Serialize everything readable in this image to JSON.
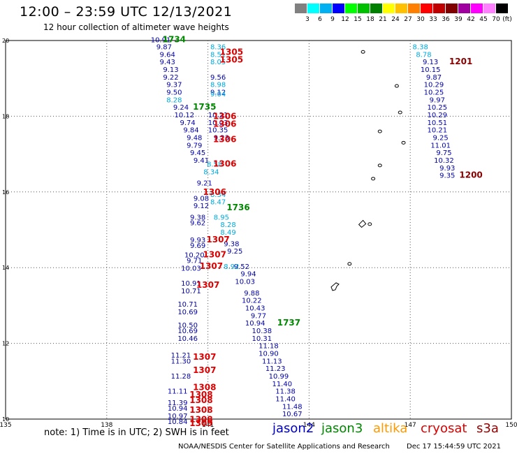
{
  "header": {
    "title": "12:00 – 23:59 UTC 12/13/2021",
    "subtitle": "12 hour collection of altimeter wave heights"
  },
  "scale": {
    "unit": "(ft)",
    "colors": [
      "#808080",
      "#00ffff",
      "#00b0f0",
      "#0000ff",
      "#00ff00",
      "#00c000",
      "#008000",
      "#ffff00",
      "#ffc000",
      "#ff8000",
      "#ff0000",
      "#c00000",
      "#800000",
      "#a000a0",
      "#ff00ff",
      "#ff80ff",
      "#000000"
    ],
    "labels": [
      "3",
      "6",
      "9",
      "12",
      "15",
      "18",
      "21",
      "24",
      "27",
      "30",
      "33",
      "36",
      "39",
      "42",
      "45",
      "70"
    ]
  },
  "map": {
    "lon_range": [
      135,
      150
    ],
    "lat_range": [
      10,
      20
    ],
    "lon_ticks": [
      "135",
      "138",
      "141",
      "144",
      "147",
      "150"
    ],
    "lat_ticks": [
      "20",
      "18",
      "16",
      "14",
      "12",
      "10"
    ],
    "grid": "dotted"
  },
  "chart_data": {
    "type": "scatter",
    "series": [
      {
        "name": "jason2",
        "color": "#0000aa",
        "points": [
          {
            "lon": 139.6,
            "lat": 19.95,
            "v": "10.91"
          },
          {
            "lon": 139.7,
            "lat": 19.77,
            "v": "9.87"
          },
          {
            "lon": 139.8,
            "lat": 19.57,
            "v": "9.64"
          },
          {
            "lon": 139.8,
            "lat": 19.37,
            "v": "9.43"
          },
          {
            "lon": 139.9,
            "lat": 19.17,
            "v": "9.13"
          },
          {
            "lon": 139.9,
            "lat": 18.97,
            "v": "9.22"
          },
          {
            "lon": 140.0,
            "lat": 18.77,
            "v": "9.37"
          },
          {
            "lon": 140.0,
            "lat": 18.57,
            "v": "9.50"
          },
          {
            "lon": 140.2,
            "lat": 18.17,
            "v": "9.24"
          },
          {
            "lon": 140.3,
            "lat": 17.97,
            "v": "10.12"
          },
          {
            "lon": 140.4,
            "lat": 17.77,
            "v": "9.74"
          },
          {
            "lon": 140.5,
            "lat": 17.57,
            "v": "9.84"
          },
          {
            "lon": 140.6,
            "lat": 17.37,
            "v": "9.48"
          },
          {
            "lon": 140.6,
            "lat": 17.17,
            "v": "9.79"
          },
          {
            "lon": 140.7,
            "lat": 16.97,
            "v": "9.45"
          },
          {
            "lon": 140.8,
            "lat": 16.77,
            "v": "9.41"
          },
          {
            "lon": 140.9,
            "lat": 16.17,
            "v": "9.21"
          },
          {
            "lon": 140.8,
            "lat": 15.77,
            "v": "9.08"
          },
          {
            "lon": 140.8,
            "lat": 15.57,
            "v": "9.12"
          },
          {
            "lon": 140.7,
            "lat": 15.27,
            "v": "9.38"
          },
          {
            "lon": 140.7,
            "lat": 15.12,
            "v": "9.62"
          },
          {
            "lon": 140.7,
            "lat": 14.67,
            "v": "9.93"
          },
          {
            "lon": 140.7,
            "lat": 14.52,
            "v": "9.69"
          },
          {
            "lon": 140.6,
            "lat": 14.27,
            "v": "10.20"
          },
          {
            "lon": 140.6,
            "lat": 14.12,
            "v": "9.71"
          },
          {
            "lon": 140.5,
            "lat": 13.92,
            "v": "10.03"
          },
          {
            "lon": 140.5,
            "lat": 13.52,
            "v": "10.91"
          },
          {
            "lon": 140.5,
            "lat": 13.32,
            "v": "10.71"
          },
          {
            "lon": 140.4,
            "lat": 12.97,
            "v": "10.71"
          },
          {
            "lon": 140.4,
            "lat": 12.77,
            "v": "10.69"
          },
          {
            "lon": 140.4,
            "lat": 12.42,
            "v": "10.50"
          },
          {
            "lon": 140.4,
            "lat": 12.27,
            "v": "10.69"
          },
          {
            "lon": 140.4,
            "lat": 12.07,
            "v": "10.46"
          },
          {
            "lon": 140.2,
            "lat": 11.62,
            "v": "11.21"
          },
          {
            "lon": 140.2,
            "lat": 11.47,
            "v": "11.30"
          },
          {
            "lon": 140.2,
            "lat": 11.07,
            "v": "11.28"
          },
          {
            "lon": 140.1,
            "lat": 10.67,
            "v": "11.11"
          },
          {
            "lon": 140.1,
            "lat": 10.37,
            "v": "11.39"
          },
          {
            "lon": 140.1,
            "lat": 10.22,
            "v": "10.94"
          },
          {
            "lon": 140.1,
            "lat": 10.02,
            "v": "10.97"
          },
          {
            "lon": 140.1,
            "lat": 9.87,
            "v": "10.84"
          },
          {
            "lon": 141.3,
            "lat": 18.97,
            "v": "9.56"
          },
          {
            "lon": 141.3,
            "lat": 18.57,
            "v": "9.12"
          },
          {
            "lon": 141.3,
            "lat": 17.97,
            "v": "10.21"
          },
          {
            "lon": 141.3,
            "lat": 17.77,
            "v": "10.03"
          },
          {
            "lon": 141.3,
            "lat": 17.57,
            "v": "10.35"
          },
          {
            "lon": 141.4,
            "lat": 17.37,
            "v": "9.23"
          },
          {
            "lon": 141.7,
            "lat": 14.57,
            "v": "9.38"
          },
          {
            "lon": 141.8,
            "lat": 14.37,
            "v": "9.25"
          },
          {
            "lon": 142.0,
            "lat": 13.97,
            "v": "9.52"
          },
          {
            "lon": 142.2,
            "lat": 13.77,
            "v": "9.94"
          },
          {
            "lon": 142.1,
            "lat": 13.57,
            "v": "10.03"
          },
          {
            "lon": 142.3,
            "lat": 13.27,
            "v": "9.88"
          },
          {
            "lon": 142.3,
            "lat": 13.07,
            "v": "10.22"
          },
          {
            "lon": 142.4,
            "lat": 12.87,
            "v": "10.43"
          },
          {
            "lon": 142.5,
            "lat": 12.67,
            "v": "9.77"
          },
          {
            "lon": 142.4,
            "lat": 12.47,
            "v": "10.94"
          },
          {
            "lon": 142.6,
            "lat": 12.27,
            "v": "10.38"
          },
          {
            "lon": 142.6,
            "lat": 12.07,
            "v": "10.31"
          },
          {
            "lon": 142.8,
            "lat": 11.87,
            "v": "11.18"
          },
          {
            "lon": 142.8,
            "lat": 11.67,
            "v": "10.90"
          },
          {
            "lon": 142.9,
            "lat": 11.47,
            "v": "11.13"
          },
          {
            "lon": 143.0,
            "lat": 11.27,
            "v": "11.23"
          },
          {
            "lon": 143.1,
            "lat": 11.07,
            "v": "10.99"
          },
          {
            "lon": 143.2,
            "lat": 10.87,
            "v": "11.40"
          },
          {
            "lon": 143.3,
            "lat": 10.67,
            "v": "11.38"
          },
          {
            "lon": 143.3,
            "lat": 10.47,
            "v": "11.40"
          },
          {
            "lon": 143.5,
            "lat": 10.27,
            "v": "11.48"
          },
          {
            "lon": 143.5,
            "lat": 10.07,
            "v": "10.67"
          },
          {
            "lon": 147.6,
            "lat": 19.37,
            "v": "9.13"
          },
          {
            "lon": 147.6,
            "lat": 19.17,
            "v": "10.15"
          },
          {
            "lon": 147.7,
            "lat": 18.97,
            "v": "9.87"
          },
          {
            "lon": 147.7,
            "lat": 18.77,
            "v": "10.29"
          },
          {
            "lon": 147.7,
            "lat": 18.57,
            "v": "10.25"
          },
          {
            "lon": 147.8,
            "lat": 18.37,
            "v": "9.97"
          },
          {
            "lon": 147.8,
            "lat": 18.17,
            "v": "10.25"
          },
          {
            "lon": 147.8,
            "lat": 17.97,
            "v": "10.29"
          },
          {
            "lon": 147.8,
            "lat": 17.77,
            "v": "10.51"
          },
          {
            "lon": 147.8,
            "lat": 17.57,
            "v": "10.21"
          },
          {
            "lon": 147.9,
            "lat": 17.37,
            "v": "9.25"
          },
          {
            "lon": 147.9,
            "lat": 17.17,
            "v": "11.01"
          },
          {
            "lon": 148.0,
            "lat": 16.97,
            "v": "9.75"
          },
          {
            "lon": 148.0,
            "lat": 16.77,
            "v": "10.32"
          },
          {
            "lon": 148.1,
            "lat": 16.57,
            "v": "9.93"
          },
          {
            "lon": 148.1,
            "lat": 16.37,
            "v": "9.35"
          }
        ]
      },
      {
        "name": "jason3",
        "color": "#00aadd",
        "points": [
          {
            "lon": 141.3,
            "lat": 19.77,
            "v": "8.36"
          },
          {
            "lon": 141.3,
            "lat": 19.57,
            "v": "8.51"
          },
          {
            "lon": 141.3,
            "lat": 19.37,
            "v": "8.05"
          },
          {
            "lon": 141.3,
            "lat": 18.77,
            "v": "8.98"
          },
          {
            "lon": 140.0,
            "lat": 18.37,
            "v": "8.28"
          },
          {
            "lon": 141.3,
            "lat": 18.52,
            "v": "9.04"
          },
          {
            "lon": 141.2,
            "lat": 16.67,
            "v": "8.58"
          },
          {
            "lon": 141.1,
            "lat": 16.47,
            "v": "8.34"
          },
          {
            "lon": 141.3,
            "lat": 15.87,
            "v": "8.34"
          },
          {
            "lon": 141.3,
            "lat": 15.67,
            "v": "8.47"
          },
          {
            "lon": 141.4,
            "lat": 15.27,
            "v": "8.95"
          },
          {
            "lon": 141.6,
            "lat": 15.07,
            "v": "8.28"
          },
          {
            "lon": 141.6,
            "lat": 14.87,
            "v": "8.49"
          },
          {
            "lon": 141.7,
            "lat": 13.97,
            "v": "8.92"
          },
          {
            "lon": 147.3,
            "lat": 19.77,
            "v": "8.38"
          },
          {
            "lon": 147.4,
            "lat": 19.57,
            "v": "8.78"
          }
        ]
      },
      {
        "name": "cryosat",
        "color": "#dd0000",
        "points": [
          {
            "lon": 141.7,
            "lat": 19.62,
            "v": "1305"
          },
          {
            "lon": 141.7,
            "lat": 19.42,
            "v": "1305"
          },
          {
            "lon": 141.5,
            "lat": 17.92,
            "v": "1306"
          },
          {
            "lon": 141.5,
            "lat": 17.72,
            "v": "1306"
          },
          {
            "lon": 141.5,
            "lat": 17.32,
            "v": "1306"
          },
          {
            "lon": 141.5,
            "lat": 16.67,
            "v": "1306"
          },
          {
            "lon": 141.2,
            "lat": 15.92,
            "v": "1306"
          },
          {
            "lon": 141.3,
            "lat": 14.67,
            "v": "1307"
          },
          {
            "lon": 141.2,
            "lat": 14.27,
            "v": "1307"
          },
          {
            "lon": 141.1,
            "lat": 13.97,
            "v": "1307"
          },
          {
            "lon": 141.0,
            "lat": 13.47,
            "v": "1307"
          },
          {
            "lon": 140.9,
            "lat": 11.57,
            "v": "1307"
          },
          {
            "lon": 140.9,
            "lat": 11.22,
            "v": "1307"
          },
          {
            "lon": 140.9,
            "lat": 10.77,
            "v": "1308"
          },
          {
            "lon": 140.8,
            "lat": 10.57,
            "v": "1308"
          },
          {
            "lon": 140.8,
            "lat": 10.42,
            "v": "1308"
          },
          {
            "lon": 140.8,
            "lat": 10.17,
            "v": "1308"
          },
          {
            "lon": 140.8,
            "lat": 9.92,
            "v": "1308"
          },
          {
            "lon": 140.8,
            "lat": 9.82,
            "v": "1309"
          }
        ]
      },
      {
        "name": "s3a",
        "color": "#880000",
        "points": [
          {
            "lon": 148.5,
            "lat": 19.37,
            "v": "1201"
          },
          {
            "lon": 148.8,
            "lat": 16.37,
            "v": "1200"
          }
        ]
      },
      {
        "name": "jason3 time",
        "color": "#008800",
        "points": [
          {
            "lon": 140.0,
            "lat": 19.95,
            "v": "1734"
          },
          {
            "lon": 140.9,
            "lat": 18.17,
            "v": "1735"
          },
          {
            "lon": 141.9,
            "lat": 15.52,
            "v": "1736"
          },
          {
            "lon": 143.4,
            "lat": 12.47,
            "v": "1737"
          }
        ]
      }
    ]
  },
  "islands": [
    {
      "lon": 145.6,
      "lat": 19.7
    },
    {
      "lon": 146.6,
      "lat": 18.8
    },
    {
      "lon": 146.7,
      "lat": 18.1
    },
    {
      "lon": 146.1,
      "lat": 17.6
    },
    {
      "lon": 146.8,
      "lat": 17.3
    },
    {
      "lon": 146.1,
      "lat": 16.7
    },
    {
      "lon": 145.9,
      "lat": 16.35
    },
    {
      "lon": 145.8,
      "lat": 15.15
    },
    {
      "lon": 145.2,
      "lat": 14.1
    }
  ],
  "footer": {
    "note": "note: 1) Time is in UTC; 2) SWH is in feet",
    "legend": [
      {
        "label": "jason2",
        "color": "#0000cc"
      },
      {
        "label": "jason3",
        "color": "#008800"
      },
      {
        "label": "altika",
        "color": "#ff9900"
      },
      {
        "label": "cryosat",
        "color": "#dd0000"
      },
      {
        "label": "s3a",
        "color": "#990000"
      }
    ],
    "credit": "NOAA/NESDIS Center for Satellite Applications and Research",
    "timestamp": "Dec 17 15:44:59 UTC 2021"
  }
}
